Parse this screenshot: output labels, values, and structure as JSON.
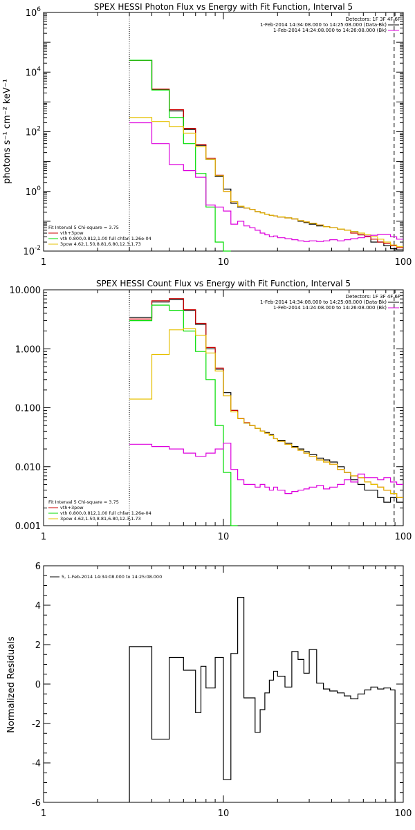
{
  "chart_data": [
    {
      "type": "line",
      "title": "SPEX HESSI Photon Flux vs Energy with Fit Function, Interval 5",
      "ylabel": "photons s⁻¹ cm⁻² keV⁻¹",
      "xlabel": "",
      "xscale": "log",
      "yscale": "log",
      "xlim": [
        1,
        100
      ],
      "ylim": [
        0.01,
        1000000
      ],
      "x_ticks": [
        1,
        10,
        100
      ],
      "x_tick_labels": [
        "1",
        "10",
        "100"
      ],
      "y_ticks": [
        0.01,
        1,
        100,
        10000,
        1000000
      ],
      "y_tick_labels": [
        {
          "base": "10",
          "exp": "-2"
        },
        {
          "base": "10",
          "exp": "0"
        },
        {
          "base": "10",
          "exp": "2"
        },
        {
          "base": "10",
          "exp": "4"
        },
        {
          "base": "10",
          "exp": "6"
        }
      ],
      "energy_range_lines": [
        3,
        89
      ],
      "legend_right": [
        "Detectors: 1F 3F 4F 6F",
        "1-Feb-2014 14:34:08.000 to 14:25:08.000 (Data-Bk)",
        "1-Feb-2014 14:24:08.000 to 14:26:08.000 (Bk)"
      ],
      "legend_left": {
        "header": "Fit Interval 5   Chi-square = 3.75",
        "entries": [
          {
            "text": "vth+3pow",
            "color": "#cc0000"
          },
          {
            "text": "vth 0.800,0.812,1.00  full chfan 1.26e-04",
            "color": "#00dd00"
          },
          {
            "text": "3pow 4.62,1.50,8.81,6.80,12.3,1.73",
            "color": "#e6c000"
          }
        ]
      },
      "bin_edges": [
        3,
        4,
        5,
        6,
        7,
        8,
        9,
        10,
        11,
        12,
        13,
        14,
        15,
        16,
        17,
        18,
        19,
        20,
        22,
        24,
        26,
        28,
        30,
        33,
        36,
        39,
        43,
        47,
        51,
        56,
        61,
        66,
        72,
        78,
        85,
        92,
        100
      ],
      "series": [
        {
          "name": "Data-Bk",
          "color": "#000000",
          "values": [
            25000,
            2600,
            500,
            120,
            35,
            12,
            3.2,
            1.2,
            0.4,
            0.3,
            0.28,
            0.25,
            0.21,
            0.19,
            0.17,
            0.16,
            0.15,
            0.14,
            0.13,
            0.12,
            0.1,
            0.09,
            0.08,
            0.07,
            0.065,
            0.06,
            0.055,
            0.05,
            0.045,
            0.035,
            0.03,
            0.02,
            0.02,
            0.015,
            0.012,
            0.011
          ]
        },
        {
          "name": "vth+3pow",
          "color": "#cc0000",
          "values": [
            25000,
            2700,
            550,
            130,
            37,
            13,
            3.5,
            1.0,
            0.45,
            0.32,
            0.28,
            0.25,
            0.21,
            0.19,
            0.17,
            0.16,
            0.15,
            0.14,
            0.13,
            0.12,
            0.105,
            0.095,
            0.085,
            0.075,
            0.065,
            0.06,
            0.055,
            0.05,
            0.04,
            0.035,
            0.03,
            0.025,
            0.02,
            0.018,
            0.015,
            0.013
          ]
        },
        {
          "name": "vth",
          "color": "#00dd00",
          "values": [
            25000,
            2500,
            300,
            40,
            4,
            0.3,
            0.02,
            0.01,
            null,
            null,
            null,
            null,
            null,
            null,
            null,
            null,
            null,
            null,
            null,
            null,
            null,
            null,
            null,
            null,
            null,
            null,
            null,
            null,
            null,
            null,
            null,
            null,
            null,
            null,
            null,
            null
          ]
        },
        {
          "name": "3pow",
          "color": "#e6c000",
          "values": [
            300,
            220,
            150,
            90,
            32,
            12,
            3.4,
            1.0,
            0.45,
            0.32,
            0.28,
            0.25,
            0.21,
            0.19,
            0.17,
            0.16,
            0.15,
            0.14,
            0.13,
            0.12,
            0.105,
            0.095,
            0.085,
            0.075,
            0.065,
            0.06,
            0.055,
            0.05,
            0.045,
            0.04,
            0.035,
            0.03,
            0.025,
            0.02,
            0.016,
            0.014
          ]
        },
        {
          "name": "Bk",
          "color": "#dd00dd",
          "values": [
            200,
            40,
            8,
            5,
            3,
            0.35,
            0.3,
            0.22,
            0.08,
            0.1,
            0.07,
            0.06,
            0.05,
            0.04,
            0.035,
            0.03,
            0.032,
            0.028,
            0.026,
            0.024,
            0.022,
            0.021,
            0.022,
            0.021,
            0.022,
            0.024,
            0.022,
            0.024,
            0.026,
            0.028,
            0.032,
            0.034,
            0.036,
            0.036,
            0.03,
            0.025
          ]
        }
      ]
    },
    {
      "type": "line",
      "title": "SPEX HESSI Count Flux vs Energy with Fit Function, Interval 5",
      "ylabel": "",
      "xlabel": "",
      "xscale": "log",
      "yscale": "log",
      "xlim": [
        1,
        100
      ],
      "ylim": [
        0.001,
        10
      ],
      "x_ticks": [
        1,
        10,
        100
      ],
      "x_tick_labels": [
        "1",
        "10",
        "100"
      ],
      "y_ticks": [
        0.001,
        0.01,
        0.1,
        1,
        10
      ],
      "y_tick_labels": [
        "0.001",
        "0.010",
        "0.100",
        "1.000",
        "10.000"
      ],
      "energy_range_lines": [
        3,
        89
      ],
      "legend_right": [
        "Detectors: 1F 3F 4F 6F",
        "1-Feb-2014 14:34:08.000 to 14:25:08.000 (Data-Bk)",
        "1-Feb-2014 14:24:08.000 to 14:26:08.000 (Bk)"
      ],
      "legend_left": {
        "header": "Fit Interval 5   Chi-square = 3.75",
        "entries": [
          {
            "text": "vth+3pow",
            "color": "#cc0000"
          },
          {
            "text": "vth 0.800,0.812,1.00  full chfan 1.26e-04",
            "color": "#00dd00"
          },
          {
            "text": "3pow 4.62,1.50,8.81,6.80,12.3,1.73",
            "color": "#e6c000"
          }
        ]
      },
      "bin_edges": [
        3,
        4,
        5,
        6,
        7,
        8,
        9,
        10,
        11,
        12,
        13,
        14,
        15,
        16,
        17,
        18,
        19,
        20,
        22,
        24,
        26,
        28,
        30,
        33,
        36,
        39,
        43,
        47,
        51,
        56,
        61,
        66,
        72,
        78,
        85,
        92,
        100
      ],
      "series": [
        {
          "name": "Data-Bk",
          "color": "#000000",
          "values": [
            3.4,
            6.2,
            6.8,
            4.5,
            2.6,
            1.0,
            0.45,
            0.18,
            0.09,
            0.065,
            0.055,
            0.05,
            0.045,
            0.04,
            0.038,
            0.035,
            0.03,
            0.028,
            0.025,
            0.022,
            0.02,
            0.018,
            0.016,
            0.014,
            0.013,
            0.012,
            0.01,
            0.008,
            0.006,
            0.005,
            0.004,
            0.004,
            0.003,
            0.0025,
            0.003,
            0.0025
          ]
        },
        {
          "name": "vth+3pow",
          "color": "#cc0000",
          "values": [
            3.2,
            6.5,
            7.1,
            4.6,
            2.7,
            1.05,
            0.47,
            0.16,
            0.09,
            0.066,
            0.056,
            0.05,
            0.045,
            0.04,
            0.037,
            0.034,
            0.03,
            0.027,
            0.024,
            0.021,
            0.019,
            0.017,
            0.015,
            0.013,
            0.012,
            0.011,
            0.009,
            0.008,
            0.007,
            0.0065,
            0.0055,
            0.005,
            0.0045,
            0.004,
            0.0035,
            0.003
          ]
        },
        {
          "name": "vth",
          "color": "#00dd00",
          "values": [
            3.0,
            5.5,
            4.5,
            2.0,
            0.9,
            0.3,
            0.05,
            0.008,
            0.001,
            null,
            null,
            null,
            null,
            null,
            null,
            null,
            null,
            null,
            null,
            null,
            null,
            null,
            null,
            null,
            null,
            null,
            null,
            null,
            null,
            null,
            null,
            null,
            null,
            null,
            null,
            null
          ]
        },
        {
          "name": "3pow",
          "color": "#e6c000",
          "values": [
            0.14,
            0.8,
            2.1,
            2.2,
            1.7,
            0.85,
            0.42,
            0.16,
            0.085,
            0.065,
            0.055,
            0.05,
            0.045,
            0.04,
            0.037,
            0.034,
            0.03,
            0.027,
            0.024,
            0.021,
            0.019,
            0.017,
            0.015,
            0.013,
            0.012,
            0.011,
            0.009,
            0.008,
            0.007,
            0.0065,
            0.0055,
            0.005,
            0.0045,
            0.004,
            0.0035,
            0.003
          ]
        },
        {
          "name": "Bk",
          "color": "#dd00dd",
          "values": [
            0.024,
            0.022,
            0.02,
            0.017,
            0.015,
            0.017,
            0.02,
            0.025,
            0.009,
            0.006,
            0.005,
            0.005,
            0.0045,
            0.005,
            0.0045,
            0.004,
            0.0045,
            0.004,
            0.0035,
            0.0038,
            0.004,
            0.0042,
            0.0045,
            0.0048,
            0.0042,
            0.0045,
            0.005,
            0.006,
            0.0055,
            0.0075,
            0.0065,
            0.0065,
            0.006,
            0.0065,
            0.0055,
            0.005
          ]
        }
      ]
    },
    {
      "type": "line",
      "title": "",
      "ylabel": "Normalized Residuals",
      "xlabel": "",
      "xscale": "log",
      "yscale": "linear",
      "xlim": [
        1,
        100
      ],
      "ylim": [
        -6,
        6
      ],
      "x_ticks": [
        1,
        10,
        100
      ],
      "x_tick_labels": [
        "1",
        "10",
        "100"
      ],
      "y_ticks": [
        -6,
        -4,
        -2,
        0,
        2,
        4,
        6
      ],
      "y_tick_labels": [
        "-6",
        "-4",
        "-2",
        "0",
        "2",
        "4",
        "6"
      ],
      "legend_left": {
        "header": "",
        "entries": [
          {
            "text": "5, 1-Feb-2014 14:34:08.000 to 14:25:08.000",
            "color": "#000000"
          }
        ]
      },
      "bin_edges": [
        3,
        4,
        5,
        6,
        7,
        7.5,
        8,
        9,
        10,
        11,
        12,
        13,
        14,
        15,
        16,
        17,
        18,
        19,
        20,
        22,
        24,
        26,
        28,
        30,
        33,
        36,
        39,
        43,
        47,
        51,
        56,
        61,
        66,
        72,
        78,
        85,
        90
      ],
      "series": [
        {
          "name": "residuals",
          "color": "#000000",
          "values": [
            1.9,
            -2.8,
            1.35,
            0.7,
            -1.45,
            0.9,
            -0.2,
            1.35,
            -4.85,
            1.55,
            4.4,
            -0.7,
            -0.7,
            -2.45,
            -1.3,
            -0.45,
            0.2,
            0.65,
            0.4,
            -0.15,
            1.65,
            1.25,
            0.55,
            1.75,
            0.05,
            -0.25,
            -0.35,
            -0.45,
            -0.6,
            -0.75,
            -0.5,
            -0.3,
            -0.15,
            -0.25,
            -0.2,
            -0.3
          ]
        }
      ]
    }
  ]
}
